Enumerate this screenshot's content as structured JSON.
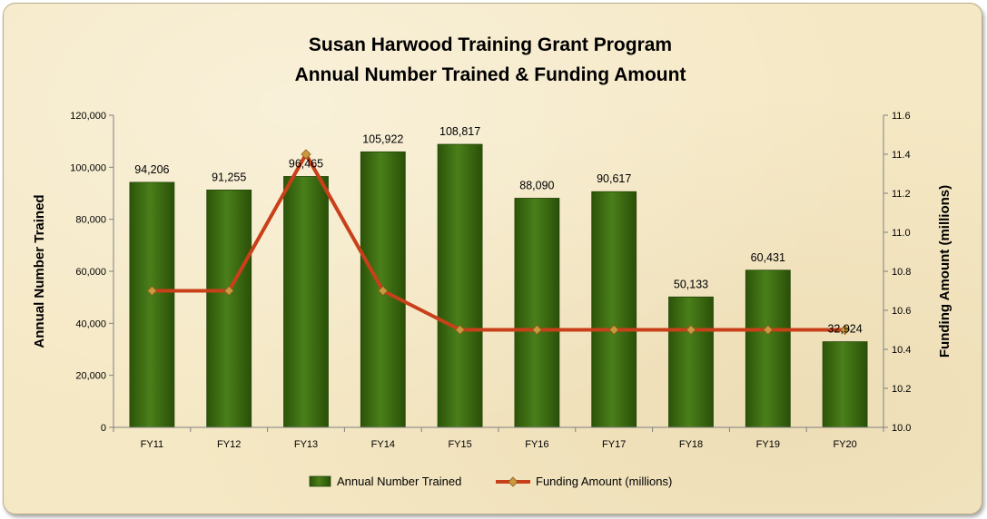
{
  "chart_data": {
    "type": "bar",
    "title_lines": [
      "Susan Harwood Training Grant Program",
      "Annual Number Trained & Funding Amount"
    ],
    "categories": [
      "FY11",
      "FY12",
      "FY13",
      "FY14",
      "FY15",
      "FY16",
      "FY17",
      "FY18",
      "FY19",
      "FY20"
    ],
    "series": [
      {
        "name": "Annual Number Trained",
        "type": "bar",
        "axis": "left",
        "color": "#3b6b12",
        "values": [
          94206,
          91255,
          96465,
          105922,
          108817,
          88090,
          90617,
          50133,
          60431,
          32924
        ],
        "labels": [
          "94,206",
          "91,255",
          "96,465",
          "105,922",
          "108,817",
          "88,090",
          "90,617",
          "50,133",
          "60,431",
          "32,924"
        ]
      },
      {
        "name": "Funding Amount (millions)",
        "type": "line",
        "axis": "right",
        "color": "#c8401a",
        "marker_color": "#c99a3e",
        "values": [
          10.7,
          10.7,
          11.4,
          10.7,
          10.5,
          10.5,
          10.5,
          10.5,
          10.5,
          10.5
        ]
      }
    ],
    "ylabel": "Annual Number Trained",
    "ylabel_right": "Funding Amount (millions)",
    "ylim": [
      0,
      120000
    ],
    "ylim_right": [
      10.0,
      11.6
    ],
    "yticks": [
      "0",
      "20,000",
      "40,000",
      "60,000",
      "80,000",
      "100,000",
      "120,000"
    ],
    "yticks_right": [
      "10.0",
      "10.2",
      "10.4",
      "10.6",
      "10.8",
      "11.0",
      "11.2",
      "11.4",
      "11.6"
    ],
    "grid": false,
    "legend_position": "bottom"
  }
}
